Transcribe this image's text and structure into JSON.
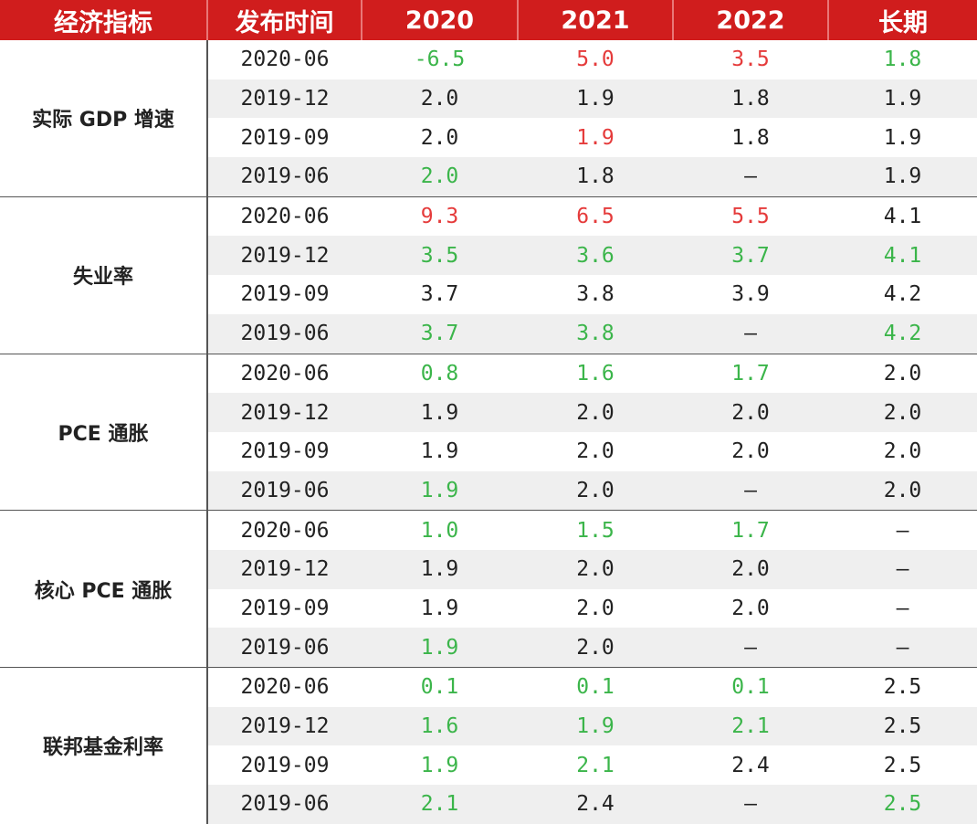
{
  "header": [
    "经济指标",
    "发布时间",
    "2020",
    "2021",
    "2022",
    "长期"
  ],
  "colors": {
    "header_bg": "#d01d1d",
    "green": "#3bb54a",
    "red": "#e53b3b",
    "black": "#222222",
    "stripe": "#efefef"
  },
  "groups": [
    {
      "name": "实际 GDP 增速",
      "rows": [
        {
          "date": "2020-06",
          "cells": [
            [
              "-6.5",
              "g"
            ],
            [
              "5.0",
              "r"
            ],
            [
              "3.5",
              "r"
            ],
            [
              "1.8",
              "g"
            ]
          ]
        },
        {
          "date": "2019-12",
          "cells": [
            [
              "2.0",
              "k"
            ],
            [
              "1.9",
              "k"
            ],
            [
              "1.8",
              "k"
            ],
            [
              "1.9",
              "k"
            ]
          ]
        },
        {
          "date": "2019-09",
          "cells": [
            [
              "2.0",
              "k"
            ],
            [
              "1.9",
              "r"
            ],
            [
              "1.8",
              "k"
            ],
            [
              "1.9",
              "k"
            ]
          ]
        },
        {
          "date": "2019-06",
          "cells": [
            [
              "2.0",
              "g"
            ],
            [
              "1.8",
              "k"
            ],
            [
              "–",
              "k"
            ],
            [
              "1.9",
              "k"
            ]
          ]
        }
      ]
    },
    {
      "name": "失业率",
      "rows": [
        {
          "date": "2020-06",
          "cells": [
            [
              "9.3",
              "r"
            ],
            [
              "6.5",
              "r"
            ],
            [
              "5.5",
              "r"
            ],
            [
              "4.1",
              "k"
            ]
          ]
        },
        {
          "date": "2019-12",
          "cells": [
            [
              "3.5",
              "g"
            ],
            [
              "3.6",
              "g"
            ],
            [
              "3.7",
              "g"
            ],
            [
              "4.1",
              "g"
            ]
          ]
        },
        {
          "date": "2019-09",
          "cells": [
            [
              "3.7",
              "k"
            ],
            [
              "3.8",
              "k"
            ],
            [
              "3.9",
              "k"
            ],
            [
              "4.2",
              "k"
            ]
          ]
        },
        {
          "date": "2019-06",
          "cells": [
            [
              "3.7",
              "g"
            ],
            [
              "3.8",
              "g"
            ],
            [
              "–",
              "k"
            ],
            [
              "4.2",
              "g"
            ]
          ]
        }
      ]
    },
    {
      "name": "PCE 通胀",
      "rows": [
        {
          "date": "2020-06",
          "cells": [
            [
              "0.8",
              "g"
            ],
            [
              "1.6",
              "g"
            ],
            [
              "1.7",
              "g"
            ],
            [
              "2.0",
              "k"
            ]
          ]
        },
        {
          "date": "2019-12",
          "cells": [
            [
              "1.9",
              "k"
            ],
            [
              "2.0",
              "k"
            ],
            [
              "2.0",
              "k"
            ],
            [
              "2.0",
              "k"
            ]
          ]
        },
        {
          "date": "2019-09",
          "cells": [
            [
              "1.9",
              "k"
            ],
            [
              "2.0",
              "k"
            ],
            [
              "2.0",
              "k"
            ],
            [
              "2.0",
              "k"
            ]
          ]
        },
        {
          "date": "2019-06",
          "cells": [
            [
              "1.9",
              "g"
            ],
            [
              "2.0",
              "k"
            ],
            [
              "–",
              "k"
            ],
            [
              "2.0",
              "k"
            ]
          ]
        }
      ]
    },
    {
      "name": "核心 PCE 通胀",
      "rows": [
        {
          "date": "2020-06",
          "cells": [
            [
              "1.0",
              "g"
            ],
            [
              "1.5",
              "g"
            ],
            [
              "1.7",
              "g"
            ],
            [
              "–",
              "k"
            ]
          ]
        },
        {
          "date": "2019-12",
          "cells": [
            [
              "1.9",
              "k"
            ],
            [
              "2.0",
              "k"
            ],
            [
              "2.0",
              "k"
            ],
            [
              "–",
              "k"
            ]
          ]
        },
        {
          "date": "2019-09",
          "cells": [
            [
              "1.9",
              "k"
            ],
            [
              "2.0",
              "k"
            ],
            [
              "2.0",
              "k"
            ],
            [
              "–",
              "k"
            ]
          ]
        },
        {
          "date": "2019-06",
          "cells": [
            [
              "1.9",
              "g"
            ],
            [
              "2.0",
              "k"
            ],
            [
              "–",
              "k"
            ],
            [
              "–",
              "k"
            ]
          ]
        }
      ]
    },
    {
      "name": "联邦基金利率",
      "rows": [
        {
          "date": "2020-06",
          "cells": [
            [
              "0.1",
              "g"
            ],
            [
              "0.1",
              "g"
            ],
            [
              "0.1",
              "g"
            ],
            [
              "2.5",
              "k"
            ]
          ]
        },
        {
          "date": "2019-12",
          "cells": [
            [
              "1.6",
              "g"
            ],
            [
              "1.9",
              "g"
            ],
            [
              "2.1",
              "g"
            ],
            [
              "2.5",
              "k"
            ]
          ]
        },
        {
          "date": "2019-09",
          "cells": [
            [
              "1.9",
              "g"
            ],
            [
              "2.1",
              "g"
            ],
            [
              "2.4",
              "k"
            ],
            [
              "2.5",
              "k"
            ]
          ]
        },
        {
          "date": "2019-06",
          "cells": [
            [
              "2.1",
              "g"
            ],
            [
              "2.4",
              "k"
            ],
            [
              "–",
              "k"
            ],
            [
              "2.5",
              "g"
            ]
          ]
        }
      ]
    }
  ]
}
